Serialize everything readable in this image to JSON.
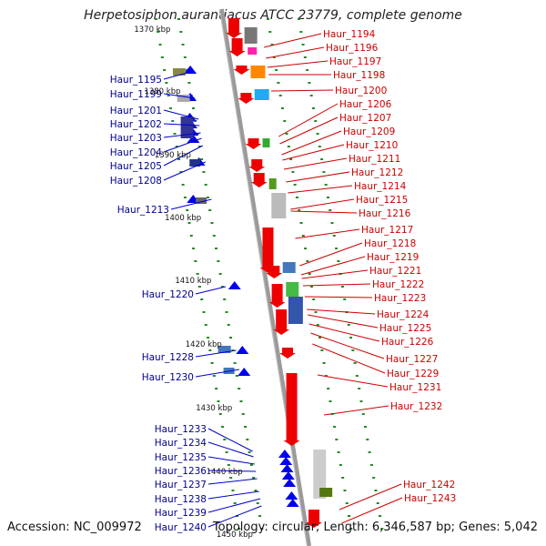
{
  "title": "Herpetosiphon aurantiacus ATCC 23779, complete genome",
  "footer": {
    "accession": "Accession: NC_009972",
    "summary": "Topology: circular; Length: 6,346,587 bp; Genes: 5,042"
  },
  "colors": {
    "reverse_strand": "#0000ee",
    "forward_strand": "#ee0000",
    "left_label": "#00008b",
    "right_label": "#cc0000",
    "tick": "#228b22",
    "backbone": "#888888"
  },
  "scale_labels": [
    "1370 kbp",
    "1380 kbp",
    "1390 kbp",
    "1400 kbp",
    "1410 kbp",
    "1420 kbp",
    "1430 kbp",
    "1440 kbp",
    "1450 kbp"
  ],
  "left_genes": [
    "Haur_1195",
    "Haur_1199",
    "Haur_1201",
    "Haur_1202",
    "Haur_1203",
    "Haur_1204",
    "Haur_1205",
    "Haur_1208",
    "Haur_1213",
    "Haur_1220",
    "Haur_1228",
    "Haur_1230",
    "Haur_1233",
    "Haur_1234",
    "Haur_1235",
    "Haur_1236",
    "Haur_1237",
    "Haur_1238",
    "Haur_1239",
    "Haur_1240"
  ],
  "right_genes": [
    "Haur_1194",
    "Haur_1196",
    "Haur_1197",
    "Haur_1198",
    "Haur_1200",
    "Haur_1206",
    "Haur_1207",
    "Haur_1209",
    "Haur_1210",
    "Haur_1211",
    "Haur_1212",
    "Haur_1214",
    "Haur_1215",
    "Haur_1216",
    "Haur_1217",
    "Haur_1218",
    "Haur_1219",
    "Haur_1221",
    "Haur_1222",
    "Haur_1223",
    "Haur_1224",
    "Haur_1225",
    "Haur_1226",
    "Haur_1227",
    "Haur_1229",
    "Haur_1231",
    "Haur_1232",
    "Haur_1242",
    "Haur_1243"
  ]
}
